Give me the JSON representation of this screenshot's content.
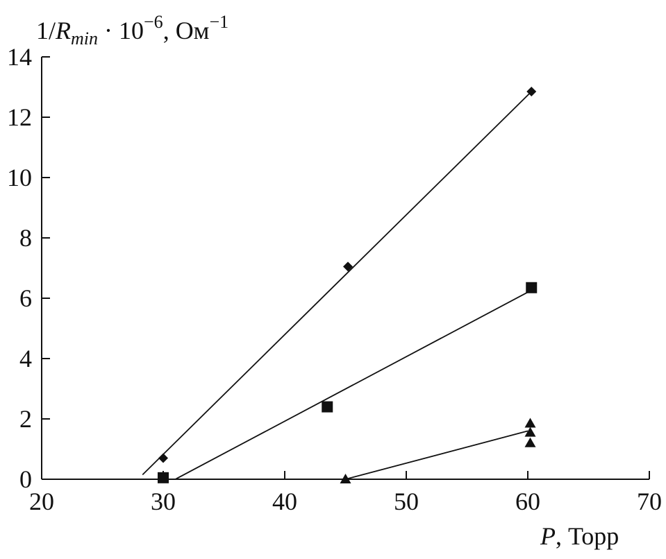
{
  "chart_data": {
    "type": "scatter",
    "title": "",
    "ylabel": {
      "prefix": "1/",
      "var": "R",
      "sub": "min",
      "mid": " · 10",
      "exp": "−6",
      "unit": ", Ом",
      "unit_exp": "−1"
    },
    "xlabel": {
      "var": "P",
      "unit": ", Торр"
    },
    "xlim": [
      20,
      70
    ],
    "ylim": [
      0,
      14
    ],
    "x_ticks": [
      20,
      30,
      40,
      50,
      60,
      70
    ],
    "y_ticks": [
      0,
      2,
      4,
      6,
      8,
      10,
      12,
      14
    ],
    "x_tick_labels": [
      "20",
      "30",
      "40",
      "50",
      "60",
      "70"
    ],
    "y_tick_labels": [
      "0",
      "2",
      "4",
      "6",
      "8",
      "10",
      "12",
      "14"
    ],
    "grid": false,
    "legend": "none",
    "series": [
      {
        "marker": "diamond",
        "points": [
          [
            30,
            0.7
          ],
          [
            45.2,
            7.05
          ],
          [
            60.3,
            12.85
          ]
        ],
        "fit": [
          [
            28.3,
            0.15
          ],
          [
            60.3,
            12.85
          ]
        ]
      },
      {
        "marker": "square",
        "points": [
          [
            30,
            0.05
          ],
          [
            43.5,
            2.4
          ],
          [
            60.3,
            6.35
          ]
        ],
        "fit": [
          [
            31,
            0
          ],
          [
            60,
            6.2
          ]
        ]
      },
      {
        "marker": "triangle",
        "points": [
          [
            45,
            0
          ],
          [
            60.2,
            1.2
          ],
          [
            60.2,
            1.55
          ],
          [
            60.2,
            1.85
          ]
        ],
        "fit": [
          [
            45,
            0
          ],
          [
            60,
            1.6
          ]
        ]
      }
    ],
    "colors": {
      "ink": "#111111"
    }
  }
}
